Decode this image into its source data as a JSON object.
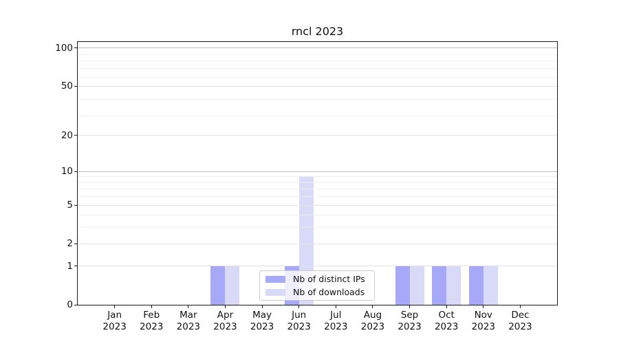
{
  "title": "rncl 2023",
  "chart_data": {
    "type": "bar",
    "title": "rncl 2023",
    "categories": [
      "Jan",
      "Feb",
      "Mar",
      "Apr",
      "May",
      "Jun",
      "Jul",
      "Aug",
      "Sep",
      "Oct",
      "Nov",
      "Dec"
    ],
    "category_year": "2023",
    "series": [
      {
        "name": "Nb of distinct IPs",
        "color": "#a8a8f8",
        "values": [
          0,
          0,
          0,
          1,
          0,
          1,
          0,
          0,
          1,
          1,
          1,
          0
        ]
      },
      {
        "name": "Nb of downloads",
        "color": "#d9d9f8",
        "values": [
          0,
          0,
          0,
          1,
          0,
          9,
          0,
          0,
          1,
          1,
          1,
          0
        ]
      }
    ],
    "y_ticks": [
      0,
      1,
      2,
      5,
      10,
      20,
      50,
      100
    ],
    "y_scale": "log10(1+x)",
    "ylim": [
      0,
      112
    ],
    "xlabel": "",
    "ylabel": "",
    "grid": true,
    "legend_position": "lower center"
  },
  "colors": {
    "spine": "#1a1a1a",
    "grid_minor": "#ededed",
    "grid_major": "#e2e2e2",
    "grid_decade": "#bfbfbf",
    "background": "#ffffff"
  }
}
